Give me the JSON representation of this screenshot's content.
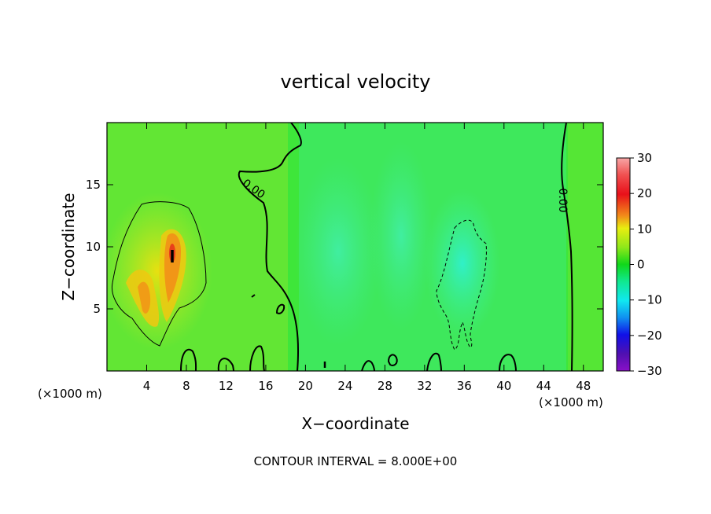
{
  "chart_data": {
    "type": "heatmap",
    "title": "vertical velocity",
    "xlabel": "X−coordinate",
    "ylabel": "Z−coordinate",
    "x_unit": "(×1000 m)",
    "x_unit_right": "(×1000 m)",
    "xlim": [
      0,
      50
    ],
    "ylim": [
      0,
      20
    ],
    "x_ticks": [
      4,
      8,
      12,
      16,
      20,
      24,
      28,
      32,
      36,
      40,
      44,
      48
    ],
    "y_ticks": [
      5,
      10,
      15
    ],
    "colorbar": {
      "min": -30,
      "max": 30,
      "ticks": [
        30,
        20,
        10,
        0,
        -10,
        -20,
        -30
      ],
      "tick_labels": [
        "30",
        "20",
        "10",
        "0",
        "−10",
        "−20",
        "−30"
      ]
    },
    "contour_labels": [
      "0.00",
      "0.00"
    ],
    "footer": "CONTOUR INTERVAL = 8.000E+00",
    "features": [
      {
        "kind": "updraft",
        "x": 6,
        "z": 9,
        "peak": 20
      },
      {
        "kind": "downdraft",
        "x": 35,
        "z": 7.5,
        "peak": -9
      }
    ]
  }
}
